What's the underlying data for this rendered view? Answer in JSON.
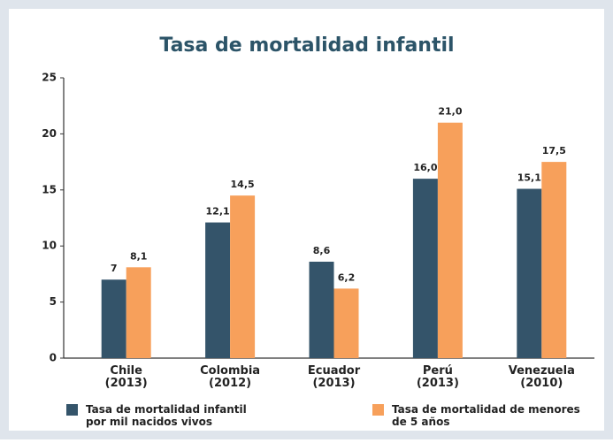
{
  "chart_data": {
    "type": "bar",
    "title": "Tasa de mortalidad infantil",
    "categories": [
      "Chile\n(2013)",
      "Colombia\n(2012)",
      "Ecuador\n(2013)",
      "Perú\n(2013)",
      "Venezuela\n(2010)"
    ],
    "series": [
      {
        "name": "Tasa de mortalidad infantil\npor mil nacidos vivos",
        "color": "#34546a",
        "values": [
          7,
          12.1,
          8.6,
          16.0,
          15.1
        ],
        "value_labels": [
          "7",
          "12,1",
          "8,6",
          "16,0",
          "15,1"
        ]
      },
      {
        "name": "Tasa de mortalidad de menores\nde 5 años",
        "color": "#f7a05b",
        "values": [
          8.1,
          14.5,
          6.2,
          21.0,
          17.5
        ],
        "value_labels": [
          "8,1",
          "14,5",
          "6,2",
          "21,0",
          "17,5"
        ]
      }
    ],
    "ylim": [
      0,
      25
    ],
    "yticks": [
      0,
      5,
      10,
      15,
      20,
      25
    ],
    "grid": false
  }
}
